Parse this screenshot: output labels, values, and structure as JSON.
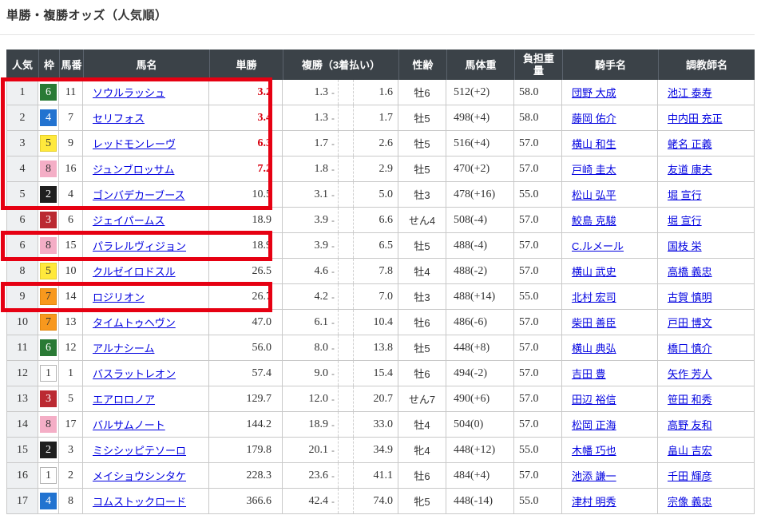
{
  "page": {
    "title": "単勝・複勝オッズ（人気順）"
  },
  "colors": {
    "header_bg": "#3b4248",
    "highlight_red": "#e60012",
    "hot_odds_red": "#d7000f",
    "link_blue": "#0000e0",
    "rank_column_bg": "#eef0f2",
    "frames": {
      "1": {
        "bg": "#ffffff",
        "fg": "#333333",
        "border": "#b5b5b5"
      },
      "2": {
        "bg": "#1f1f1f",
        "fg": "#ffffff",
        "border": "#1f1f1f"
      },
      "3": {
        "bg": "#bb2a32",
        "fg": "#ffffff",
        "border": "#bb2a32"
      },
      "4": {
        "bg": "#2273d0",
        "fg": "#ffffff",
        "border": "#2273d0"
      },
      "5": {
        "bg": "#ffe93c",
        "fg": "#333333",
        "border": "#e5cf2e"
      },
      "6": {
        "bg": "#2a7a35",
        "fg": "#ffffff",
        "border": "#2a7a35"
      },
      "7": {
        "bg": "#f8981d",
        "fg": "#333333",
        "border": "#e2870f"
      },
      "8": {
        "bg": "#f4aec6",
        "fg": "#333333",
        "border": "#f4aec6"
      }
    }
  },
  "table": {
    "headers": {
      "rank": "人気",
      "frame": "枠",
      "number": "馬番",
      "name": "馬名",
      "win": "単勝",
      "place": "複勝（3着払い）",
      "sex_age": "性齢",
      "weight": "馬体重",
      "impost": "負担重量",
      "jockey": "騎手名",
      "trainer": "調教師名"
    },
    "place_separator": "-",
    "rows": [
      {
        "rank": "1",
        "frame": "6",
        "number": "11",
        "name": "ソウルラッシュ",
        "win": "3.2",
        "hot": true,
        "place_low": "1.3",
        "place_high": "1.6",
        "sex_age": "牡6",
        "weight": "512(+2)",
        "impost": "58.0",
        "jockey": "団野 大成",
        "trainer": "池江 泰寿"
      },
      {
        "rank": "2",
        "frame": "4",
        "number": "7",
        "name": "セリフォス",
        "win": "3.4",
        "hot": true,
        "place_low": "1.3",
        "place_high": "1.7",
        "sex_age": "牡5",
        "weight": "498(+4)",
        "impost": "58.0",
        "jockey": "藤岡 佑介",
        "trainer": "中内田 充正"
      },
      {
        "rank": "3",
        "frame": "5",
        "number": "9",
        "name": "レッドモンレーヴ",
        "win": "6.3",
        "hot": true,
        "place_low": "1.7",
        "place_high": "2.6",
        "sex_age": "牡5",
        "weight": "516(+4)",
        "impost": "57.0",
        "jockey": "横山 和生",
        "trainer": "蛯名 正義"
      },
      {
        "rank": "4",
        "frame": "8",
        "number": "16",
        "name": "ジュンブロッサム",
        "win": "7.2",
        "hot": true,
        "place_low": "1.8",
        "place_high": "2.9",
        "sex_age": "牡5",
        "weight": "470(+2)",
        "impost": "57.0",
        "jockey": "戸崎 圭太",
        "trainer": "友道 康夫"
      },
      {
        "rank": "5",
        "frame": "2",
        "number": "4",
        "name": "ゴンバデカーブース",
        "win": "10.5",
        "hot": false,
        "place_low": "3.1",
        "place_high": "5.0",
        "sex_age": "牡3",
        "weight": "478(+16)",
        "impost": "55.0",
        "jockey": "松山 弘平",
        "trainer": "堀 宣行"
      },
      {
        "rank": "6",
        "frame": "3",
        "number": "6",
        "name": "ジェイパームス",
        "win": "18.9",
        "hot": false,
        "place_low": "3.9",
        "place_high": "6.6",
        "sex_age": "せん4",
        "weight": "508(-4)",
        "impost": "57.0",
        "jockey": "鮫島 克駿",
        "trainer": "堀 宣行"
      },
      {
        "rank": "6",
        "frame": "8",
        "number": "15",
        "name": "パラレルヴィジョン",
        "win": "18.9",
        "hot": false,
        "place_low": "3.9",
        "place_high": "6.5",
        "sex_age": "牡5",
        "weight": "488(-4)",
        "impost": "57.0",
        "jockey": "C.ルメール",
        "trainer": "国枝 栄"
      },
      {
        "rank": "8",
        "frame": "5",
        "number": "10",
        "name": "クルゼイロドスル",
        "win": "26.5",
        "hot": false,
        "place_low": "4.6",
        "place_high": "7.8",
        "sex_age": "牡4",
        "weight": "488(-2)",
        "impost": "57.0",
        "jockey": "横山 武史",
        "trainer": "高橋 義忠"
      },
      {
        "rank": "9",
        "frame": "7",
        "number": "14",
        "name": "ロジリオン",
        "win": "26.7",
        "hot": false,
        "place_low": "4.2",
        "place_high": "7.0",
        "sex_age": "牡3",
        "weight": "488(+14)",
        "impost": "55.0",
        "jockey": "北村 宏司",
        "trainer": "古賀 慎明"
      },
      {
        "rank": "10",
        "frame": "7",
        "number": "13",
        "name": "タイムトゥヘヴン",
        "win": "47.0",
        "hot": false,
        "place_low": "6.1",
        "place_high": "10.4",
        "sex_age": "牡6",
        "weight": "486(-6)",
        "impost": "57.0",
        "jockey": "柴田 善臣",
        "trainer": "戸田 博文"
      },
      {
        "rank": "11",
        "frame": "6",
        "number": "12",
        "name": "アルナシーム",
        "win": "56.0",
        "hot": false,
        "place_low": "8.0",
        "place_high": "13.8",
        "sex_age": "牡5",
        "weight": "448(+8)",
        "impost": "57.0",
        "jockey": "横山 典弘",
        "trainer": "橋口 慎介"
      },
      {
        "rank": "12",
        "frame": "1",
        "number": "1",
        "name": "バスラットレオン",
        "win": "57.4",
        "hot": false,
        "place_low": "9.0",
        "place_high": "15.4",
        "sex_age": "牡6",
        "weight": "494(-2)",
        "impost": "57.0",
        "jockey": "吉田 豊",
        "trainer": "矢作 芳人"
      },
      {
        "rank": "13",
        "frame": "3",
        "number": "5",
        "name": "エアロロノア",
        "win": "129.7",
        "hot": false,
        "place_low": "12.0",
        "place_high": "20.7",
        "sex_age": "せん7",
        "weight": "490(+6)",
        "impost": "57.0",
        "jockey": "田辺 裕信",
        "trainer": "笹田 和秀"
      },
      {
        "rank": "14",
        "frame": "8",
        "number": "17",
        "name": "バルサムノート",
        "win": "144.2",
        "hot": false,
        "place_low": "18.9",
        "place_high": "33.0",
        "sex_age": "牡4",
        "weight": "504(0)",
        "impost": "57.0",
        "jockey": "松岡 正海",
        "trainer": "高野 友和"
      },
      {
        "rank": "15",
        "frame": "2",
        "number": "3",
        "name": "ミシシッピテソーロ",
        "win": "179.8",
        "hot": false,
        "place_low": "20.1",
        "place_high": "34.9",
        "sex_age": "牝4",
        "weight": "448(+12)",
        "impost": "55.0",
        "jockey": "木幡 巧也",
        "trainer": "畠山 吉宏"
      },
      {
        "rank": "16",
        "frame": "1",
        "number": "2",
        "name": "メイショウシンタケ",
        "win": "228.3",
        "hot": false,
        "place_low": "23.6",
        "place_high": "41.1",
        "sex_age": "牡6",
        "weight": "484(+4)",
        "impost": "57.0",
        "jockey": "池添 謙一",
        "trainer": "千田 輝彦"
      },
      {
        "rank": "17",
        "frame": "4",
        "number": "8",
        "name": "コムストックロード",
        "win": "366.6",
        "hot": false,
        "place_low": "42.4",
        "place_high": "74.0",
        "sex_age": "牝5",
        "weight": "448(-14)",
        "impost": "55.0",
        "jockey": "津村 明秀",
        "trainer": "宗像 義忠"
      }
    ]
  },
  "highlights": [
    {
      "from_row": 1,
      "to_row": 5
    },
    {
      "from_row": 7,
      "to_row": 7
    },
    {
      "from_row": 9,
      "to_row": 9
    }
  ]
}
